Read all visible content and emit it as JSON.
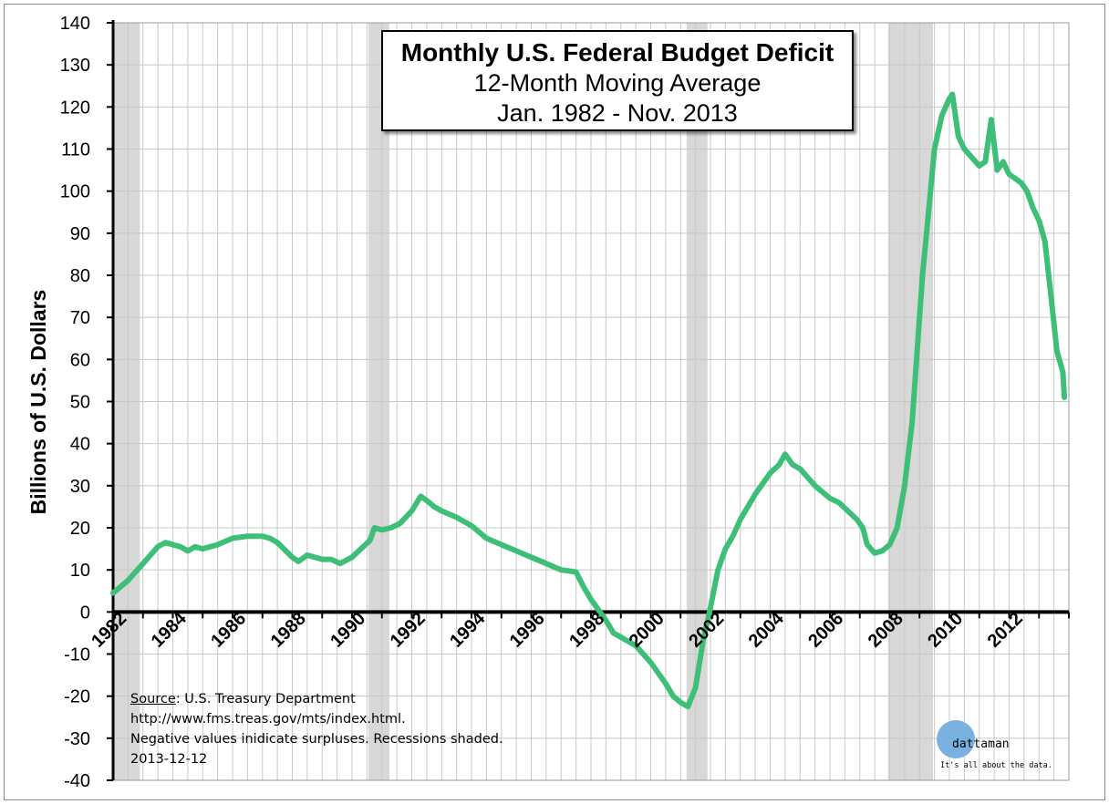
{
  "chart_data": {
    "type": "line",
    "title": "Monthly U.S. Federal Budget Deficit",
    "subtitle": "12-Month Moving Average",
    "date_range": "Jan. 1982 - Nov. 2013",
    "ylabel": "Billions of U.S. Dollars",
    "xlabel": "",
    "ylim": [
      -40,
      140
    ],
    "xlim": [
      1982.0,
      2014.0
    ],
    "yticks": [
      -40,
      -30,
      -20,
      -10,
      0,
      10,
      20,
      30,
      40,
      50,
      60,
      70,
      80,
      90,
      100,
      110,
      120,
      130,
      140
    ],
    "xticks": [
      1982,
      1984,
      1986,
      1988,
      1990,
      1992,
      1994,
      1996,
      1998,
      2000,
      2002,
      2004,
      2006,
      2008,
      2010,
      2012
    ],
    "grid": true,
    "line_color": "#3dbf78",
    "recession_color": "#d8d8d8",
    "recessions": [
      {
        "start": 1982.0,
        "end": 1982.9
      },
      {
        "start": 1990.55,
        "end": 1991.25
      },
      {
        "start": 2001.2,
        "end": 2001.9
      },
      {
        "start": 2007.95,
        "end": 2009.45
      }
    ],
    "series": [
      {
        "x": [
          1982.0,
          1982.5,
          1983.0,
          1983.5,
          1983.75,
          1984.25,
          1984.5,
          1984.75,
          1985.0,
          1985.5,
          1986.0,
          1986.5,
          1987.0,
          1987.25,
          1987.5,
          1988.0,
          1988.2,
          1988.5,
          1989.0,
          1989.3,
          1989.6,
          1990.0,
          1990.3,
          1990.6,
          1990.75,
          1991.0,
          1991.3,
          1991.6,
          1992.0,
          1992.3,
          1992.5,
          1992.75,
          1993.0,
          1993.5,
          1994.0,
          1994.5,
          1995.0,
          1995.5,
          1996.0,
          1996.5,
          1997.0,
          1997.5,
          1997.75,
          1998.0,
          1998.25,
          1998.5,
          1998.75,
          1999.0,
          1999.5,
          2000.0,
          2000.5,
          2000.75,
          2001.0,
          2001.25,
          2001.5,
          2001.75,
          2002.0,
          2002.25,
          2002.5,
          2002.75,
          2003.0,
          2003.5,
          2004.0,
          2004.3,
          2004.5,
          2004.75,
          2005.0,
          2005.5,
          2006.0,
          2006.3,
          2006.6,
          2006.9,
          2007.1,
          2007.25,
          2007.5,
          2007.75,
          2008.0,
          2008.25,
          2008.5,
          2008.75,
          2008.9,
          2009.1,
          2009.3,
          2009.5,
          2009.75,
          2010.0,
          2010.1,
          2010.3,
          2010.5,
          2010.75,
          2011.0,
          2011.2,
          2011.4,
          2011.6,
          2011.8,
          2012.0,
          2012.2,
          2012.4,
          2012.6,
          2012.8,
          2013.0,
          2013.2,
          2013.4,
          2013.6,
          2013.8,
          2013.85
        ],
        "values": [
          4.5,
          7.5,
          11.5,
          15.5,
          16.5,
          15.5,
          14.5,
          15.5,
          15.0,
          16.0,
          17.5,
          18.0,
          18.0,
          17.5,
          16.5,
          13.0,
          12.0,
          13.5,
          12.5,
          12.5,
          11.5,
          13.0,
          15.0,
          17.0,
          20.0,
          19.5,
          20.0,
          21.0,
          24.0,
          27.5,
          26.5,
          25.0,
          24.0,
          22.5,
          20.5,
          17.5,
          16.0,
          14.5,
          13.0,
          11.5,
          10.0,
          9.5,
          6.0,
          3.0,
          0.5,
          -2.0,
          -5.0,
          -6.0,
          -8.0,
          -12.0,
          -17.0,
          -20.0,
          -21.5,
          -22.5,
          -18.0,
          -7.0,
          1.0,
          10.0,
          15.0,
          18.0,
          22.0,
          28.0,
          33.0,
          35.0,
          37.5,
          35.0,
          34.0,
          30.0,
          27.0,
          26.0,
          24.0,
          22.0,
          20.0,
          16.0,
          14.0,
          14.5,
          16.0,
          20.0,
          30.0,
          45.0,
          60.0,
          80.0,
          95.0,
          110.0,
          118.0,
          122.0,
          123.0,
          113.0,
          110.0,
          108.0,
          106.0,
          107.0,
          117.0,
          105.0,
          107.0,
          104.0,
          103.0,
          102.0,
          100.0,
          96.0,
          93.0,
          88.0,
          75.0,
          62.0,
          57.0,
          51.0
        ]
      }
    ]
  },
  "notes": {
    "source_label": "Source",
    "source_text": ": U.S. Treasury Department",
    "url": "http://www.fms.treas.gov/mts/index.html.",
    "line3": "Negative values inidicate surpluses. Recessions shaded.",
    "date": "2013-12-12"
  },
  "logo": {
    "name": "dattaman",
    "tagline": "It's all about the data.",
    "circle_color": "#79b2e0"
  }
}
